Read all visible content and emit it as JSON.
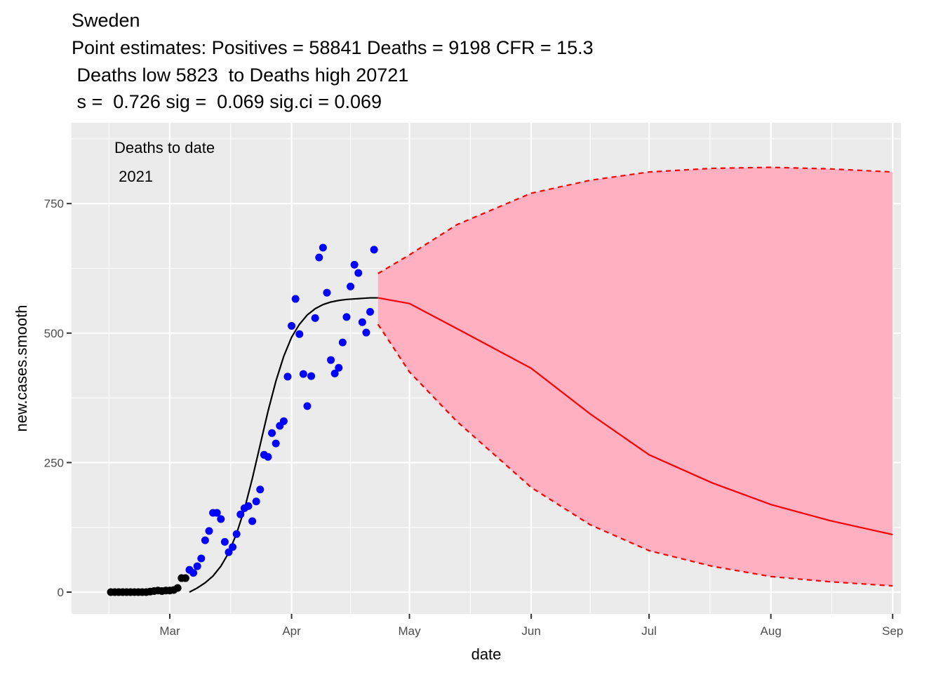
{
  "chart_data": {
    "type": "composite",
    "title": [
      "Sweden",
      "Point estimates: Positives = 58841 Deaths = 9198 CFR = 15.3",
      " Deaths low 5823  to Deaths high 20721",
      " s =  0.726 sig =  0.069 sig.ci = 0.069"
    ],
    "annotation": [
      "Deaths to date",
      " 2021"
    ],
    "x_label": "date",
    "y_label": "new.cases.smooth",
    "xlim": [
      35,
      246.1
    ],
    "ylim": [
      -42,
      906
    ],
    "xticks": [
      {
        "value": 60,
        "label": "Mar"
      },
      {
        "value": 91,
        "label": "Apr"
      },
      {
        "value": 121,
        "label": "May"
      },
      {
        "value": 152,
        "label": "Jun"
      },
      {
        "value": 182,
        "label": "Jul"
      },
      {
        "value": 213,
        "label": "Aug"
      },
      {
        "value": 244,
        "label": "Sep"
      }
    ],
    "yticks": [
      0,
      250,
      500,
      750
    ],
    "grid": true,
    "series": [
      {
        "type": "scatter",
        "color": "#000000",
        "x": [
          45,
          46,
          47,
          48,
          49,
          50,
          51,
          52,
          53,
          54,
          55,
          56,
          57,
          58,
          59,
          60,
          61,
          62,
          63,
          64
        ],
        "values": [
          0,
          0,
          0,
          0,
          0,
          0,
          0,
          0,
          0,
          0,
          1,
          2,
          3,
          2,
          3,
          3,
          4,
          8,
          27,
          27
        ]
      },
      {
        "type": "scatter",
        "color": "#0000ff",
        "x": [
          65,
          66,
          67,
          68,
          69,
          70,
          71,
          72,
          73,
          74,
          75,
          76,
          77,
          78,
          79,
          80,
          81,
          82,
          83,
          84,
          85,
          86,
          87,
          88,
          89,
          90,
          91,
          92,
          93,
          94,
          95,
          96,
          97,
          98,
          99,
          100,
          101,
          102,
          103,
          104,
          105,
          106,
          107,
          108,
          109,
          110,
          111,
          112
        ],
        "values": [
          43,
          37,
          50,
          65,
          100,
          118,
          153,
          153,
          141,
          97,
          77,
          87,
          112,
          150,
          162,
          166,
          137,
          175,
          198,
          265,
          261,
          307,
          287,
          321,
          330,
          416,
          514,
          566,
          498,
          421,
          359,
          417,
          529,
          646,
          665,
          578,
          448,
          422,
          433,
          482,
          531,
          590,
          632,
          616,
          521,
          501,
          541,
          661
        ]
      },
      {
        "type": "line",
        "color": "#000000",
        "x": [
          65,
          67,
          69,
          71,
          73,
          75,
          77,
          79,
          81,
          83,
          85,
          87,
          89,
          91,
          93,
          95,
          97,
          99,
          101,
          103,
          105,
          107,
          109,
          111,
          113
        ],
        "values": [
          0,
          8,
          18,
          31,
          50,
          76,
          113,
          160,
          219,
          284,
          349,
          407,
          455,
          492,
          517,
          535,
          547,
          555,
          560,
          563,
          565,
          566,
          567,
          568,
          568
        ]
      },
      {
        "type": "band",
        "color": "#ffb0c1",
        "line_color": "#ff0000",
        "dashed": true,
        "x": [
          113,
          121,
          133,
          152,
          167,
          182,
          198,
          213,
          228,
          244
        ],
        "upper": [
          615,
          651,
          709,
          770,
          795,
          811,
          818,
          820,
          817,
          811
        ],
        "lower": [
          517,
          425,
          330,
          202,
          130,
          80,
          50,
          30,
          20,
          12
        ]
      },
      {
        "type": "line",
        "color": "#ff0000",
        "x": [
          113,
          121,
          133,
          152,
          167,
          182,
          198,
          213,
          228,
          244
        ],
        "values": [
          568,
          557,
          509,
          432,
          344,
          265,
          211,
          169,
          138,
          111
        ]
      }
    ]
  }
}
